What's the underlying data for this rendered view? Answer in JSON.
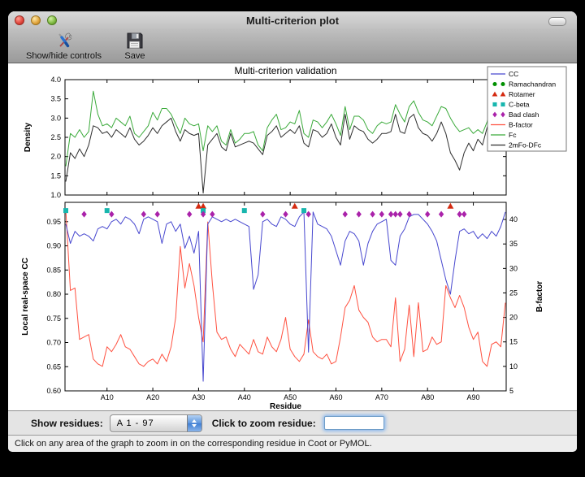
{
  "window": {
    "title": "Multi-criterion plot"
  },
  "toolbar": {
    "items": [
      {
        "label": "Show/hide controls",
        "icon": "tools-icon"
      },
      {
        "label": "Save",
        "icon": "save-icon"
      }
    ]
  },
  "controls": {
    "show_residues_label": "Show residues:",
    "range_value": "A  1 - 97",
    "zoom_label": "Click to zoom residue:",
    "zoom_value": ""
  },
  "status": {
    "text": "Click on any area of the graph to zoom in on the corresponding residue in Coot or PyMOL."
  },
  "chart_data": {
    "title": "Multi-criterion validation",
    "xlabel": "Residue",
    "x_range": [
      1,
      97
    ],
    "x_tick_residues": [
      10,
      20,
      30,
      40,
      50,
      60,
      70,
      80,
      90
    ],
    "x_tick_labels": [
      "A10",
      "A20",
      "A30",
      "A40",
      "A50",
      "A60",
      "A70",
      "A80",
      "A90"
    ],
    "grid": false,
    "legend": {
      "position": "upper right",
      "entries": [
        {
          "label": "CC",
          "type": "line",
          "color": "#4747cf"
        },
        {
          "label": "Ramachandran",
          "type": "markers",
          "shape": "circle",
          "color": "#009000"
        },
        {
          "label": "Rotamer",
          "type": "markers",
          "shape": "triangle",
          "color": "#d42a10"
        },
        {
          "label": "C-beta",
          "type": "markers",
          "shape": "square",
          "color": "#18b6ae"
        },
        {
          "label": "Bad clash",
          "type": "markers",
          "shape": "diamond",
          "color": "#aa22aa"
        },
        {
          "label": "B-factor",
          "type": "line",
          "color": "#ff5140"
        },
        {
          "label": "Fc",
          "type": "line",
          "color": "#3aaa3a"
        },
        {
          "label": "2mFo-DFc",
          "type": "line",
          "color": "#2e2e2e"
        }
      ]
    },
    "panels": [
      {
        "name": "density",
        "type": "line",
        "ylabel": "Density",
        "ylim": [
          1.0,
          4.0
        ],
        "yticks": [
          1.0,
          1.5,
          2.0,
          2.5,
          3.0,
          3.5,
          4.0
        ],
        "series": [
          {
            "name": "Fc",
            "color": "#3aaa3a",
            "values": [
              1.75,
              2.6,
              2.5,
              2.7,
              2.5,
              2.65,
              3.7,
              3.1,
              2.8,
              2.85,
              2.75,
              3.0,
              2.9,
              2.8,
              3.05,
              2.6,
              2.5,
              2.65,
              2.8,
              3.15,
              2.95,
              3.25,
              3.25,
              3.1,
              2.85,
              2.6,
              3.0,
              2.85,
              2.8,
              2.85,
              2.15,
              2.8,
              2.65,
              2.8,
              2.4,
              2.3,
              2.7,
              2.35,
              2.45,
              2.6,
              2.6,
              2.65,
              2.3,
              2.15,
              2.75,
              2.95,
              3.1,
              2.7,
              2.75,
              2.9,
              2.85,
              3.2,
              2.6,
              2.5,
              2.95,
              2.9,
              2.75,
              2.9,
              3.1,
              2.85,
              2.55,
              3.3,
              2.7,
              3.05,
              3.05,
              2.95,
              2.7,
              2.6,
              2.8,
              2.9,
              2.85,
              2.9,
              3.35,
              3.1,
              2.9,
              3.3,
              3.45,
              3.15,
              2.95,
              2.9,
              2.8,
              3.05,
              3.3,
              3.25,
              3.0,
              2.8,
              2.65,
              2.7,
              2.75,
              2.6,
              2.7,
              2.6,
              2.9,
              3.5,
              2.7,
              2.85,
              3.6
            ]
          },
          {
            "name": "2mFo-DFc",
            "color": "#2e2e2e",
            "values": [
              1.35,
              2.1,
              1.95,
              2.2,
              2.0,
              2.3,
              2.8,
              2.75,
              2.6,
              2.65,
              2.5,
              2.7,
              2.6,
              2.5,
              2.75,
              2.45,
              2.3,
              2.4,
              2.55,
              2.75,
              2.6,
              2.8,
              2.9,
              3.0,
              2.65,
              2.4,
              2.7,
              2.6,
              2.55,
              2.6,
              1.05,
              2.3,
              2.45,
              2.6,
              2.25,
              2.15,
              2.6,
              2.25,
              2.3,
              2.35,
              2.4,
              2.35,
              2.2,
              2.05,
              2.55,
              2.65,
              2.8,
              2.5,
              2.6,
              2.7,
              2.6,
              2.8,
              2.35,
              2.25,
              2.7,
              2.65,
              2.5,
              2.6,
              2.85,
              2.5,
              2.3,
              3.1,
              2.45,
              2.8,
              2.7,
              2.65,
              2.45,
              2.35,
              2.45,
              2.6,
              2.6,
              2.65,
              3.1,
              2.65,
              2.6,
              3.0,
              3.1,
              2.75,
              2.6,
              2.55,
              2.4,
              2.6,
              2.9,
              2.6,
              2.1,
              1.9,
              1.65,
              2.1,
              2.35,
              2.15,
              2.45,
              2.3,
              2.75,
              3.15,
              2.5,
              2.6,
              3.2
            ]
          }
        ]
      },
      {
        "name": "cc_bfactor",
        "type": "line",
        "ylabel_left": "Local real-space CC",
        "ylim_left": [
          0.6,
          0.99
        ],
        "yticks_left": [
          0.6,
          0.65,
          0.7,
          0.75,
          0.8,
          0.85,
          0.9,
          0.95
        ],
        "ylabel_right": "B-factor",
        "ylim_right": [
          5,
          43.5
        ],
        "yticks_right": [
          5,
          10,
          15,
          20,
          25,
          30,
          35,
          40
        ],
        "series": [
          {
            "name": "B-factor",
            "axis": "right",
            "color": "#ff5140",
            "values": [
              42,
              25.5,
              26,
              15.5,
              16,
              16.5,
              11.5,
              10.5,
              10,
              14,
              13,
              14.5,
              16.5,
              14,
              13.5,
              12,
              10.5,
              10,
              11,
              11.5,
              10.5,
              12.5,
              11,
              14,
              20,
              34.5,
              26,
              31,
              26.5,
              20,
              15,
              39.5,
              27,
              17,
              15.5,
              16,
              13.5,
              12,
              14.5,
              13.5,
              12.5,
              15.5,
              13,
              12.5,
              16,
              14,
              13,
              15.5,
              20,
              13.5,
              12,
              11,
              12.5,
              19.5,
              13,
              12,
              11.5,
              12.5,
              10.5,
              11,
              16,
              22,
              23.5,
              26.5,
              21.5,
              20,
              19,
              16,
              15,
              15.5,
              15.5,
              14,
              24,
              11,
              13.5,
              22.5,
              12,
              23,
              13,
              13.5,
              16,
              14.5,
              15,
              26.5,
              24,
              22,
              24.5,
              22,
              18,
              15.5,
              17,
              11,
              10,
              14.5,
              15,
              14,
              23
            ]
          },
          {
            "name": "CC",
            "axis": "left",
            "color": "#4747cf",
            "values": [
              0.945,
              0.905,
              0.93,
              0.92,
              0.925,
              0.92,
              0.91,
              0.935,
              0.94,
              0.935,
              0.95,
              0.955,
              0.945,
              0.96,
              0.955,
              0.945,
              0.925,
              0.955,
              0.96,
              0.955,
              0.95,
              0.905,
              0.945,
              0.95,
              0.93,
              0.945,
              0.895,
              0.92,
              0.885,
              0.93,
              0.62,
              0.945,
              0.96,
              0.955,
              0.95,
              0.955,
              0.95,
              0.955,
              0.95,
              0.945,
              0.94,
              0.81,
              0.84,
              0.95,
              0.955,
              0.945,
              0.94,
              0.96,
              0.955,
              0.945,
              0.94,
              0.96,
              0.97,
              0.68,
              0.97,
              0.945,
              0.94,
              0.935,
              0.92,
              0.89,
              0.86,
              0.91,
              0.93,
              0.925,
              0.91,
              0.86,
              0.905,
              0.93,
              0.945,
              0.95,
              0.955,
              0.87,
              0.86,
              0.92,
              0.935,
              0.96,
              0.965,
              0.965,
              0.955,
              0.945,
              0.93,
              0.91,
              0.87,
              0.83,
              0.8,
              0.87,
              0.93,
              0.935,
              0.925,
              0.93,
              0.915,
              0.925,
              0.915,
              0.93,
              0.92,
              0.94,
              0.97
            ]
          }
        ],
        "outlier_markers": [
          {
            "name": "Ramachandran",
            "shape": "circle",
            "color": "#009000",
            "row_cc": 0.99,
            "residues": []
          },
          {
            "name": "Rotamer",
            "shape": "triangle",
            "color": "#d42a10",
            "row_cc": 0.982,
            "residues": [
              30,
              31,
              51,
              85
            ]
          },
          {
            "name": "C-beta",
            "shape": "square",
            "color": "#18b6ae",
            "row_cc": 0.973,
            "residues": [
              1,
              10,
              31,
              40,
              53
            ]
          },
          {
            "name": "Bad clash",
            "shape": "diamond",
            "color": "#aa22aa",
            "row_cc": 0.9655,
            "residues": [
              5,
              11,
              18,
              21,
              28,
              31,
              33,
              44,
              49,
              54,
              62,
              65,
              68,
              70,
              72,
              73,
              74,
              76,
              80,
              83,
              87,
              88
            ]
          }
        ]
      }
    ]
  }
}
